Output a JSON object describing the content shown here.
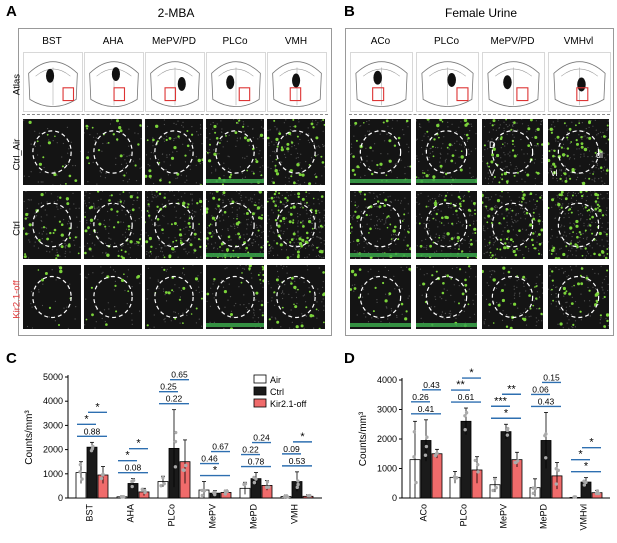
{
  "panels": {
    "A": {
      "letter": "A",
      "title": "2-MBA",
      "columns": [
        "BST",
        "AHA",
        "MePV/PD",
        "PLCo",
        "VMH"
      ],
      "rows": [
        "Atlas",
        "Ctrl_Air",
        "Ctrl",
        "Kir2.1-off"
      ]
    },
    "B": {
      "letter": "B",
      "title": "Female Urine",
      "columns": [
        "ACo",
        "PLCo",
        "MePV/PD",
        "VMHvl"
      ],
      "row_marks": {
        "D": "D",
        "V": "V",
        "dl": "dl",
        "vl": "vl"
      }
    },
    "C": {
      "letter": "C"
    },
    "D": {
      "letter": "D"
    }
  },
  "colors": {
    "air": "#ffffff",
    "ctrl": "#1a1a1a",
    "kir": "#f06b6b",
    "sig": "#2e6fb0",
    "kir_label": "#e23b3b",
    "green": "#7bd43a"
  },
  "chart_data": [
    {
      "type": "bar",
      "ylabel": "Counts/mm³",
      "ylim": [
        0,
        5000
      ],
      "yticks": [
        "0",
        "1000",
        "2000",
        "3000",
        "4000",
        "5000"
      ],
      "categories": [
        "BST",
        "AHA",
        "PLCo",
        "MePV",
        "MePD",
        "VMH"
      ],
      "legend": [
        "Air",
        "Ctrl",
        "Kir2.1-off"
      ],
      "legend_position": "top-right",
      "series": [
        {
          "name": "Air",
          "values": [
            1050,
            50,
            680,
            330,
            400,
            60
          ],
          "err": [
            450,
            40,
            220,
            350,
            250,
            60
          ]
        },
        {
          "name": "Ctrl",
          "values": [
            2100,
            600,
            2050,
            200,
            800,
            680
          ],
          "err": [
            200,
            200,
            1600,
            100,
            250,
            400
          ]
        },
        {
          "name": "Kir2.1-off",
          "values": [
            950,
            250,
            1500,
            230,
            520,
            70
          ],
          "err": [
            350,
            150,
            900,
            100,
            200,
            60
          ]
        }
      ],
      "annotations": [
        {
          "cat": 0,
          "text": "*",
          "pair": "ctrl-kir",
          "level": 2
        },
        {
          "cat": 0,
          "text": "*",
          "pair": "air-ctrl",
          "level": 1
        },
        {
          "cat": 0,
          "text": "0.88",
          "pair": "air-kir",
          "level": 0
        },
        {
          "cat": 1,
          "text": "*",
          "pair": "ctrl-kir",
          "level": 2
        },
        {
          "cat": 1,
          "text": "*",
          "pair": "air-ctrl",
          "level": 1
        },
        {
          "cat": 1,
          "text": "0.08",
          "pair": "air-kir",
          "level": 0
        },
        {
          "cat": 2,
          "text": "0.65",
          "pair": "ctrl-kir",
          "level": 2
        },
        {
          "cat": 2,
          "text": "0.25",
          "pair": "air-ctrl",
          "level": 1
        },
        {
          "cat": 2,
          "text": "0.22",
          "pair": "air-kir",
          "level": 0
        },
        {
          "cat": 3,
          "text": "0.67",
          "pair": "ctrl-kir",
          "level": 2
        },
        {
          "cat": 3,
          "text": "0.46",
          "pair": "air-ctrl",
          "level": 1
        },
        {
          "cat": 3,
          "text": "*",
          "pair": "air-kir",
          "level": 0
        },
        {
          "cat": 4,
          "text": "0.24",
          "pair": "ctrl-kir",
          "level": 2
        },
        {
          "cat": 4,
          "text": "0.22",
          "pair": "air-ctrl",
          "level": 1
        },
        {
          "cat": 4,
          "text": "0.78",
          "pair": "air-kir",
          "level": 0
        },
        {
          "cat": 5,
          "text": "*",
          "pair": "ctrl-kir",
          "level": 2
        },
        {
          "cat": 5,
          "text": "0.09",
          "pair": "air-ctrl",
          "level": 1
        },
        {
          "cat": 5,
          "text": "0.53",
          "pair": "air-kir",
          "level": 0
        }
      ]
    },
    {
      "type": "bar",
      "ylabel": "Counts/mm³",
      "ylim": [
        0,
        4000
      ],
      "yticks": [
        "0",
        "1000",
        "2000",
        "3000",
        "4000"
      ],
      "categories": [
        "ACo",
        "PLCo",
        "MePV",
        "MePD",
        "VMHvl"
      ],
      "series": [
        {
          "name": "Air",
          "values": [
            1300,
            700,
            450,
            350,
            20
          ],
          "err": [
            1300,
            200,
            250,
            300,
            20
          ]
        },
        {
          "name": "Ctrl",
          "values": [
            1950,
            2600,
            2250,
            1950,
            540
          ],
          "err": [
            700,
            450,
            250,
            950,
            150
          ]
        },
        {
          "name": "Kir2.1-off",
          "values": [
            1500,
            950,
            1300,
            750,
            180
          ],
          "err": [
            150,
            450,
            250,
            450,
            80
          ]
        }
      ],
      "annotations": [
        {
          "cat": 0,
          "text": "0.43",
          "pair": "ctrl-kir",
          "level": 2
        },
        {
          "cat": 0,
          "text": "0.26",
          "pair": "air-ctrl",
          "level": 1
        },
        {
          "cat": 0,
          "text": "0.41",
          "pair": "air-kir",
          "level": 0
        },
        {
          "cat": 1,
          "text": "*",
          "pair": "ctrl-kir",
          "level": 2
        },
        {
          "cat": 1,
          "text": "**",
          "pair": "air-ctrl",
          "level": 1
        },
        {
          "cat": 1,
          "text": "0.61",
          "pair": "air-kir",
          "level": 0
        },
        {
          "cat": 2,
          "text": "**",
          "pair": "ctrl-kir",
          "level": 2
        },
        {
          "cat": 2,
          "text": "***",
          "pair": "air-ctrl",
          "level": 1
        },
        {
          "cat": 2,
          "text": "*",
          "pair": "air-kir",
          "level": 0
        },
        {
          "cat": 3,
          "text": "0.15",
          "pair": "ctrl-kir",
          "level": 2
        },
        {
          "cat": 3,
          "text": "0.06",
          "pair": "air-ctrl",
          "level": 1
        },
        {
          "cat": 3,
          "text": "0.43",
          "pair": "air-kir",
          "level": 0
        },
        {
          "cat": 4,
          "text": "*",
          "pair": "ctrl-kir",
          "level": 2
        },
        {
          "cat": 4,
          "text": "*",
          "pair": "air-ctrl",
          "level": 1
        },
        {
          "cat": 4,
          "text": "*",
          "pair": "air-kir",
          "level": 0
        }
      ]
    }
  ]
}
